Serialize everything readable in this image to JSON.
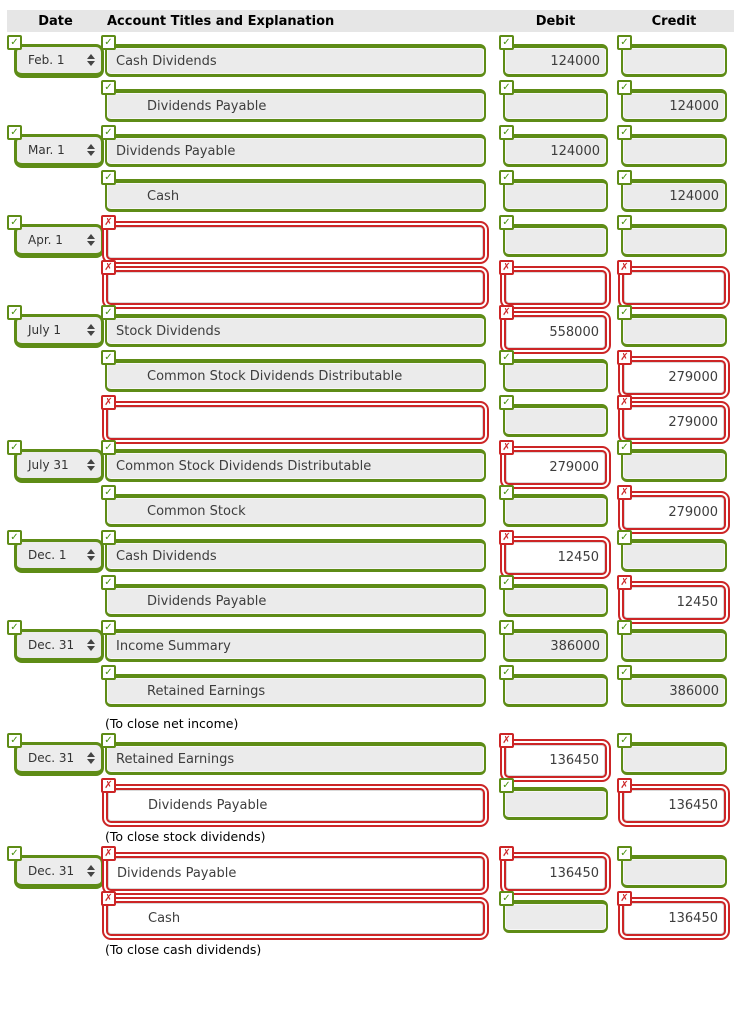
{
  "colors": {
    "accent_green": "#5e8c16",
    "accent_red": "#cc2526",
    "field_gray": "#ebebeb",
    "header_bg": "#e6e6e6"
  },
  "header": {
    "date": "Date",
    "account": "Account Titles and Explanation",
    "debit": "Debit",
    "credit": "Credit"
  },
  "rows": [
    {
      "type": "entry",
      "date": "Feb. 1",
      "date_status": "correct",
      "account": "Cash Dividends",
      "account_status": "correct",
      "account_indent": false,
      "debit": "124000",
      "debit_status": "correct",
      "credit": "",
      "credit_status": "correct"
    },
    {
      "type": "entry",
      "date": "",
      "account": "Dividends Payable",
      "account_status": "correct",
      "account_indent": true,
      "debit": "",
      "debit_status": "correct",
      "credit": "124000",
      "credit_status": "correct"
    },
    {
      "type": "entry",
      "date": "Mar. 1",
      "date_status": "correct",
      "account": "Dividends Payable",
      "account_status": "correct",
      "account_indent": false,
      "debit": "124000",
      "debit_status": "correct",
      "credit": "",
      "credit_status": "correct"
    },
    {
      "type": "entry",
      "date": "",
      "account": "Cash",
      "account_status": "correct",
      "account_indent": true,
      "debit": "",
      "debit_status": "correct",
      "credit": "124000",
      "credit_status": "correct"
    },
    {
      "type": "entry",
      "date": "Apr. 1",
      "date_status": "correct",
      "account": "",
      "account_status": "wrong",
      "account_indent": false,
      "debit": "",
      "debit_status": "correct",
      "credit": "",
      "credit_status": "correct"
    },
    {
      "type": "entry",
      "date": "",
      "account": "",
      "account_status": "wrong",
      "account_indent": false,
      "debit": "",
      "debit_status": "wrong",
      "credit": "",
      "credit_status": "wrong"
    },
    {
      "type": "entry",
      "date": "July 1",
      "date_status": "correct",
      "account": "Stock Dividends",
      "account_status": "correct",
      "account_indent": false,
      "debit": "558000",
      "debit_status": "wrong",
      "credit": "",
      "credit_status": "correct"
    },
    {
      "type": "entry",
      "date": "",
      "account": "Common Stock Dividends Distributable",
      "account_status": "correct",
      "account_indent": true,
      "debit": "",
      "debit_status": "correct",
      "credit": "279000",
      "credit_status": "wrong"
    },
    {
      "type": "entry",
      "date": "",
      "account": "",
      "account_status": "wrong",
      "account_indent": false,
      "debit": "",
      "debit_status": "correct",
      "credit": "279000",
      "credit_status": "wrong"
    },
    {
      "type": "entry",
      "date": "July 31",
      "date_status": "correct",
      "account": "Common Stock Dividends Distributable",
      "account_status": "correct",
      "account_indent": false,
      "debit": "279000",
      "debit_status": "wrong",
      "credit": "",
      "credit_status": "correct"
    },
    {
      "type": "entry",
      "date": "",
      "account": "Common Stock",
      "account_status": "correct",
      "account_indent": true,
      "debit": "",
      "debit_status": "correct",
      "credit": "279000",
      "credit_status": "wrong"
    },
    {
      "type": "entry",
      "date": "Dec. 1",
      "date_status": "correct",
      "account": "Cash Dividends",
      "account_status": "correct",
      "account_indent": false,
      "debit": "12450",
      "debit_status": "wrong",
      "credit": "",
      "credit_status": "correct"
    },
    {
      "type": "entry",
      "date": "",
      "account": "Dividends Payable",
      "account_status": "correct",
      "account_indent": true,
      "debit": "",
      "debit_status": "correct",
      "credit": "12450",
      "credit_status": "wrong"
    },
    {
      "type": "entry",
      "date": "Dec. 31",
      "date_status": "correct",
      "account": "Income Summary",
      "account_status": "correct",
      "account_indent": false,
      "debit": "386000",
      "debit_status": "correct",
      "credit": "",
      "credit_status": "correct"
    },
    {
      "type": "entry",
      "date": "",
      "account": "Retained Earnings",
      "account_status": "correct",
      "account_indent": true,
      "debit": "",
      "debit_status": "correct",
      "credit": "386000",
      "credit_status": "correct"
    },
    {
      "type": "caption",
      "text": "(To close net income)"
    },
    {
      "type": "entry",
      "date": "Dec. 31",
      "date_status": "correct",
      "account": "Retained Earnings",
      "account_status": "correct",
      "account_indent": false,
      "debit": "136450",
      "debit_status": "wrong",
      "credit": "",
      "credit_status": "correct"
    },
    {
      "type": "entry",
      "date": "",
      "account": "Dividends Payable",
      "account_status": "wrong",
      "account_indent": true,
      "debit": "",
      "debit_status": "correct",
      "credit": "136450",
      "credit_status": "wrong"
    },
    {
      "type": "caption",
      "text": "(To close stock dividends)"
    },
    {
      "type": "entry",
      "date": "Dec. 31",
      "date_status": "correct",
      "account": "Dividends Payable",
      "account_status": "wrong",
      "account_indent": false,
      "debit": "136450",
      "debit_status": "wrong",
      "credit": "",
      "credit_status": "correct"
    },
    {
      "type": "entry",
      "date": "",
      "account": "Cash",
      "account_status": "wrong",
      "account_indent": true,
      "debit": "",
      "debit_status": "correct",
      "credit": "136450",
      "credit_status": "wrong"
    },
    {
      "type": "caption",
      "text": "(To close cash dividends)"
    }
  ],
  "icons": {
    "check": "✓",
    "cross": "✗"
  }
}
